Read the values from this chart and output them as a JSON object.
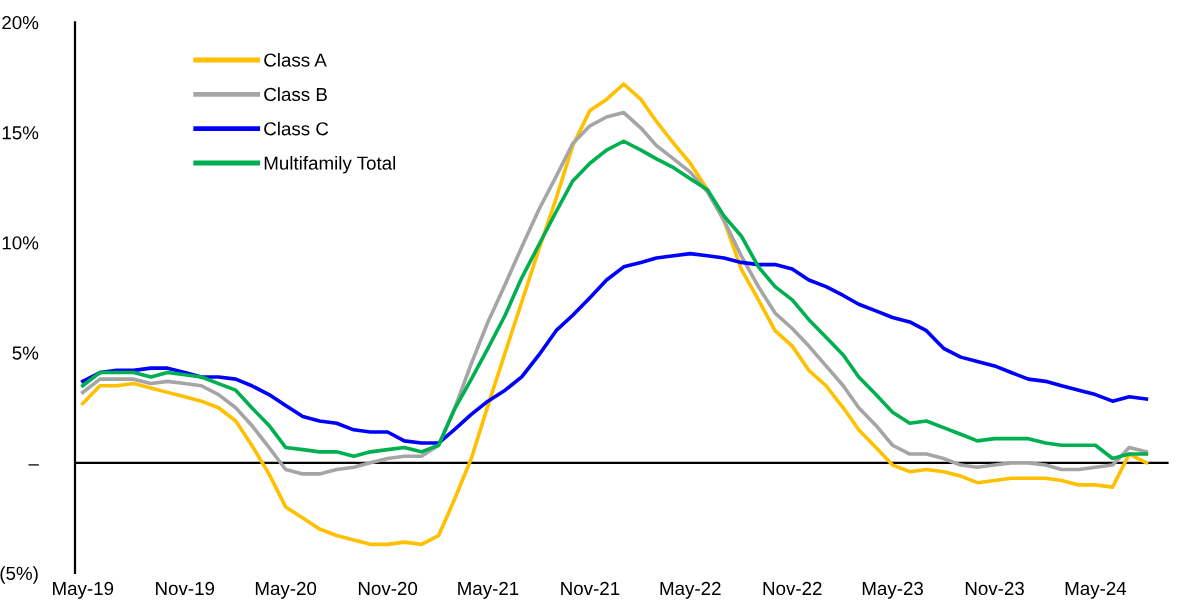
{
  "chart_data": {
    "type": "line",
    "x": [
      "2019-05",
      "2019-06",
      "2019-07",
      "2019-08",
      "2019-09",
      "2019-10",
      "2019-11",
      "2019-12",
      "2020-01",
      "2020-02",
      "2020-03",
      "2020-04",
      "2020-05",
      "2020-06",
      "2020-07",
      "2020-08",
      "2020-09",
      "2020-10",
      "2020-11",
      "2020-12",
      "2021-01",
      "2021-02",
      "2021-03",
      "2021-04",
      "2021-05",
      "2021-06",
      "2021-07",
      "2021-08",
      "2021-09",
      "2021-10",
      "2021-11",
      "2021-12",
      "2022-01",
      "2022-02",
      "2022-03",
      "2022-04",
      "2022-05",
      "2022-06",
      "2022-07",
      "2022-08",
      "2022-09",
      "2022-10",
      "2022-11",
      "2022-12",
      "2023-01",
      "2023-02",
      "2023-03",
      "2023-04",
      "2023-05",
      "2023-06",
      "2023-07",
      "2023-08",
      "2023-09",
      "2023-10",
      "2023-11",
      "2023-12",
      "2024-01",
      "2024-02",
      "2024-03",
      "2024-04",
      "2024-05",
      "2024-06",
      "2024-07",
      "2024-08"
    ],
    "series": [
      {
        "name": "Class A",
        "color": "#ffc000",
        "values": [
          2.7,
          3.5,
          3.5,
          3.6,
          3.4,
          3.2,
          3.0,
          2.8,
          2.5,
          1.9,
          0.8,
          -0.5,
          -2.0,
          -2.5,
          -3.0,
          -3.3,
          -3.5,
          -3.7,
          -3.7,
          -3.6,
          -3.7,
          -3.3,
          -1.7,
          0.2,
          2.6,
          5.0,
          7.3,
          9.7,
          12.0,
          14.4,
          16.0,
          16.5,
          17.2,
          16.5,
          15.5,
          14.5,
          13.6,
          12.4,
          11.0,
          8.8,
          7.4,
          6.0,
          5.3,
          4.2,
          3.5,
          2.5,
          1.5,
          0.7,
          -0.1,
          -0.4,
          -0.3,
          -0.4,
          -0.6,
          -0.9,
          -0.8,
          -0.7,
          -0.7,
          -0.7,
          -0.8,
          -1.0,
          -1.0,
          -1.1,
          0.4,
          0.0
        ]
      },
      {
        "name": "Class B",
        "color": "#a5a5a5",
        "values": [
          3.2,
          3.8,
          3.8,
          3.8,
          3.6,
          3.7,
          3.6,
          3.5,
          3.1,
          2.5,
          1.7,
          0.7,
          -0.3,
          -0.5,
          -0.5,
          -0.3,
          -0.2,
          0.0,
          0.2,
          0.3,
          0.3,
          0.8,
          2.4,
          4.5,
          6.4,
          8.1,
          9.8,
          11.5,
          13.0,
          14.5,
          15.3,
          15.7,
          15.9,
          15.2,
          14.4,
          13.8,
          13.2,
          12.3,
          11.0,
          9.4,
          8.0,
          6.8,
          6.1,
          5.3,
          4.4,
          3.5,
          2.5,
          1.7,
          0.8,
          0.4,
          0.4,
          0.2,
          -0.1,
          -0.2,
          -0.1,
          0.0,
          0.0,
          -0.1,
          -0.3,
          -0.3,
          -0.2,
          -0.1,
          0.7,
          0.5
        ]
      },
      {
        "name": "Class C",
        "color": "#0000ff",
        "values": [
          3.7,
          4.1,
          4.2,
          4.2,
          4.3,
          4.3,
          4.1,
          3.9,
          3.9,
          3.8,
          3.5,
          3.1,
          2.6,
          2.1,
          1.9,
          1.8,
          1.5,
          1.4,
          1.4,
          1.0,
          0.9,
          0.9,
          1.5,
          2.2,
          2.8,
          3.3,
          3.9,
          4.9,
          6.0,
          6.7,
          7.5,
          8.3,
          8.9,
          9.1,
          9.3,
          9.4,
          9.5,
          9.4,
          9.3,
          9.1,
          9.0,
          9.0,
          8.8,
          8.3,
          8.0,
          7.6,
          7.2,
          6.9,
          6.6,
          6.4,
          6.0,
          5.2,
          4.8,
          4.6,
          4.4,
          4.1,
          3.8,
          3.7,
          3.5,
          3.3,
          3.1,
          2.8,
          3.0,
          2.9
        ]
      },
      {
        "name": "Multifamily Total",
        "color": "#00b050",
        "values": [
          3.5,
          4.1,
          4.1,
          4.1,
          3.9,
          4.1,
          4.0,
          3.9,
          3.6,
          3.3,
          2.5,
          1.7,
          0.7,
          0.6,
          0.5,
          0.5,
          0.3,
          0.5,
          0.6,
          0.7,
          0.5,
          0.8,
          2.4,
          3.8,
          5.2,
          6.7,
          8.4,
          9.9,
          11.4,
          12.8,
          13.6,
          14.2,
          14.6,
          14.2,
          13.8,
          13.4,
          12.9,
          12.4,
          11.2,
          10.3,
          8.9,
          8.0,
          7.4,
          6.5,
          5.7,
          4.9,
          3.9,
          3.1,
          2.3,
          1.8,
          1.9,
          1.6,
          1.3,
          1.0,
          1.1,
          1.1,
          1.1,
          0.9,
          0.8,
          0.8,
          0.8,
          0.2,
          0.4,
          0.4
        ]
      }
    ],
    "xlim": [
      "2019-04-17",
      "2024-09-10"
    ],
    "xticks": [
      {
        "value": "2019-05",
        "label": "May-19"
      },
      {
        "value": "2019-11",
        "label": "Nov-19"
      },
      {
        "value": "2020-05",
        "label": "May-20"
      },
      {
        "value": "2020-11",
        "label": "Nov-20"
      },
      {
        "value": "2021-05",
        "label": "May-21"
      },
      {
        "value": "2021-11",
        "label": "Nov-21"
      },
      {
        "value": "2022-05",
        "label": "May-22"
      },
      {
        "value": "2022-11",
        "label": "Nov-22"
      },
      {
        "value": "2023-05",
        "label": "May-23"
      },
      {
        "value": "2023-11",
        "label": "Nov-23"
      },
      {
        "value": "2024-05",
        "label": "May-24"
      }
    ],
    "ylim": [
      -5,
      20
    ],
    "yticks": [
      {
        "value": -5,
        "label": "(5%)"
      },
      {
        "value": 0,
        "label": "–"
      },
      {
        "value": 5,
        "label": "5%"
      },
      {
        "value": 10,
        "label": "10%"
      },
      {
        "value": 15,
        "label": "15%"
      },
      {
        "value": 20,
        "label": "20%"
      }
    ],
    "ref_lines": [
      {
        "axis": "y",
        "value": 0,
        "color": "#000000"
      }
    ],
    "grid": false,
    "legend": "top left",
    "marker": "none",
    "line_style": "solid"
  }
}
